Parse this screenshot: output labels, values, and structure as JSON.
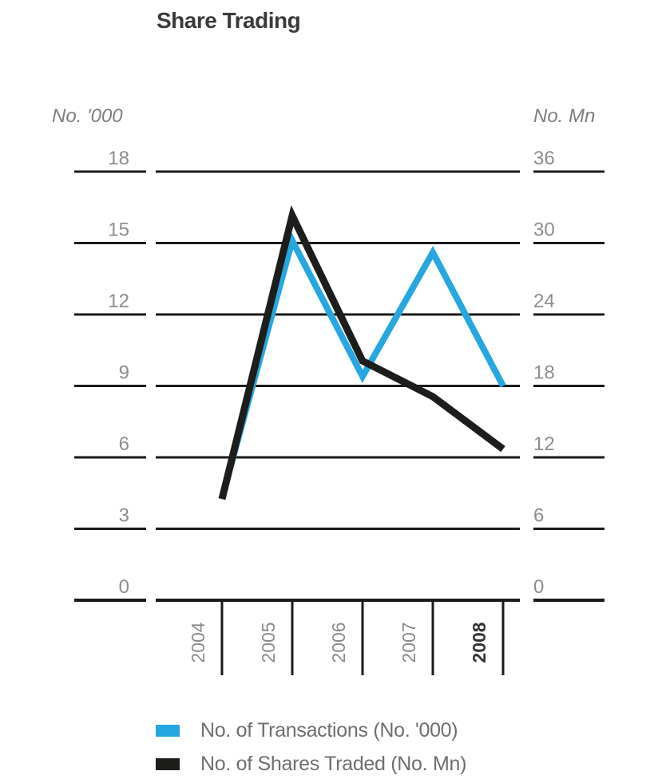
{
  "chart_data": {
    "type": "line",
    "title": "Share Trading",
    "categories": [
      "2004",
      "2005",
      "2006",
      "2007",
      "2008"
    ],
    "highlighted_category": "2008",
    "left_axis": {
      "label": "No. '000",
      "ticks": [
        18,
        15,
        12,
        9,
        6,
        3,
        0
      ],
      "range": [
        0,
        18
      ]
    },
    "right_axis": {
      "label": "No. Mn",
      "ticks": [
        36,
        30,
        24,
        18,
        12,
        6,
        0
      ],
      "range": [
        0,
        36
      ]
    },
    "grid": true,
    "legend_position": "bottom",
    "series": [
      {
        "name": "No. of Transactions (No. '000)",
        "axis": "left",
        "color": "#27a7df",
        "values": [
          4.3,
          15.1,
          9.4,
          14.6,
          9.0
        ]
      },
      {
        "name": "No. of Shares Traded (No. Mn)",
        "axis": "right",
        "color": "#1d1d1b",
        "values": [
          8.5,
          32.3,
          20.1,
          17.1,
          12.7
        ]
      }
    ],
    "colors": {
      "gridline": "#1a1a1a",
      "tick_label": "#8d8d8d",
      "axis_header": "#7d7d7d",
      "year_label": "#8a8a8a",
      "year_label_highlight": "#333333",
      "title": "#3a3a3a",
      "legend_text": "#6e6e6e"
    }
  }
}
